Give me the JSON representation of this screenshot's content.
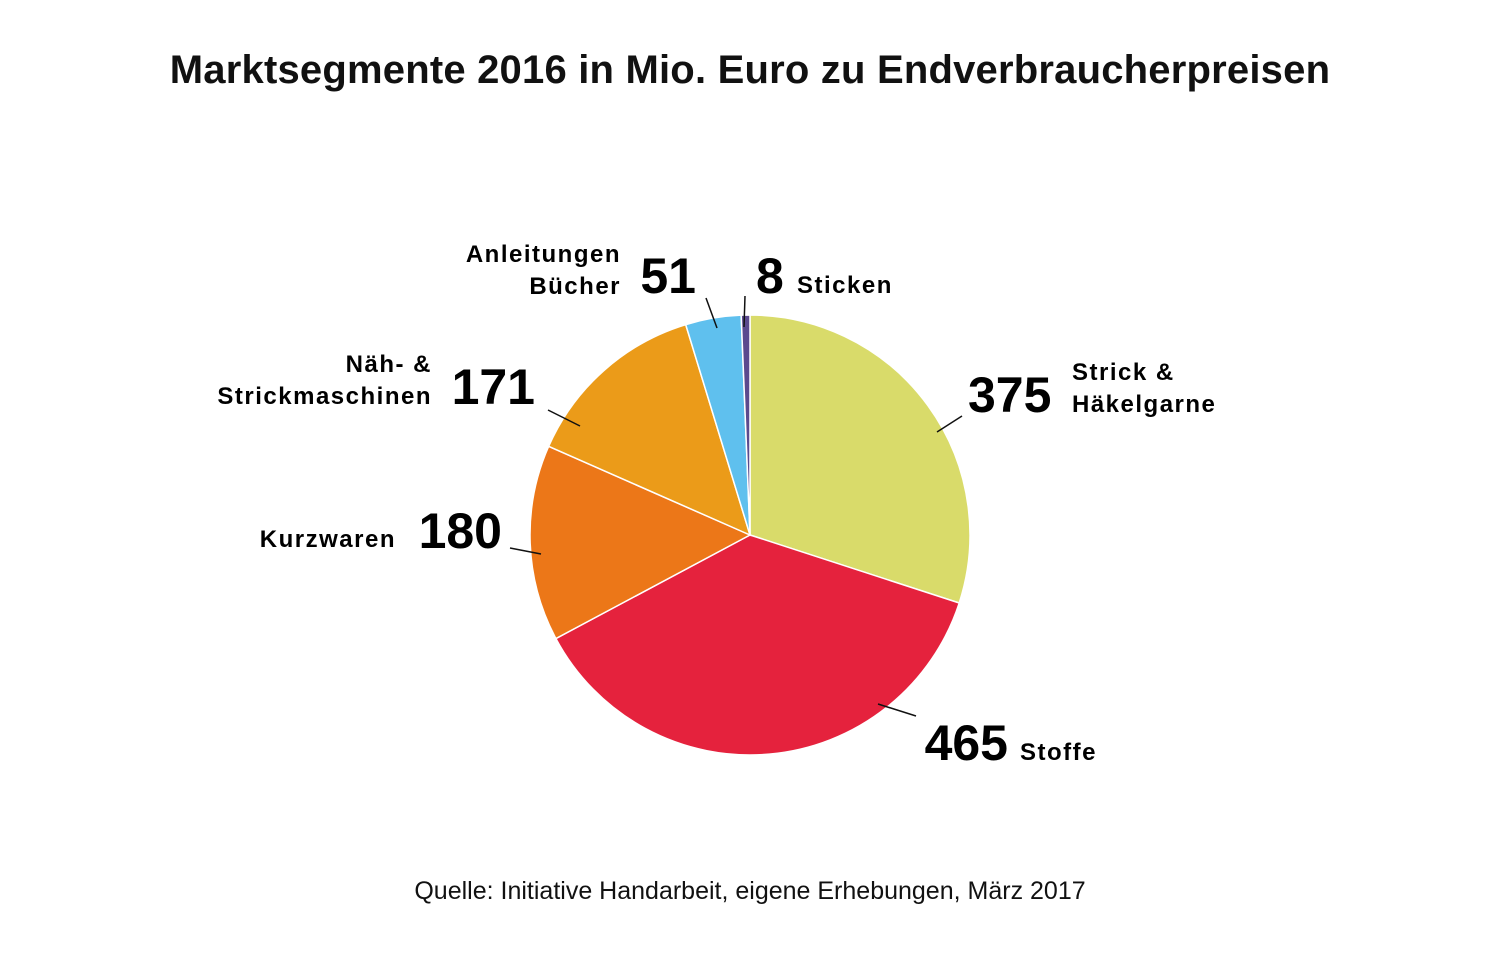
{
  "chart_data": {
    "type": "pie",
    "title": "Marktsegmente 2016 in Mio. Euro zu Endverbraucherpreisen",
    "source": "Quelle: Initiative Handarbeit, eigene Erhebungen, März 2017",
    "slices": [
      {
        "id": "strick",
        "value": 375,
        "label_lines": [
          "Strick &",
          "Häkelgarne"
        ],
        "color": "#d9db6a"
      },
      {
        "id": "stoffe",
        "value": 465,
        "label_lines": [
          "Stoffe"
        ],
        "color": "#e5223d"
      },
      {
        "id": "kurzwaren",
        "value": 180,
        "label_lines": [
          "Kurzwaren"
        ],
        "color": "#ec7718"
      },
      {
        "id": "maschinen",
        "value": 171,
        "label_lines": [
          "Näh- &",
          "Strickmaschinen"
        ],
        "color": "#eb9b19"
      },
      {
        "id": "anleitungen",
        "value": 51,
        "label_lines": [
          "Anleitungen",
          "Bücher"
        ],
        "color": "#5fc0ee"
      },
      {
        "id": "sticken",
        "value": 8,
        "label_lines": [
          "Sticken"
        ],
        "color": "#5b4a8e"
      }
    ]
  }
}
